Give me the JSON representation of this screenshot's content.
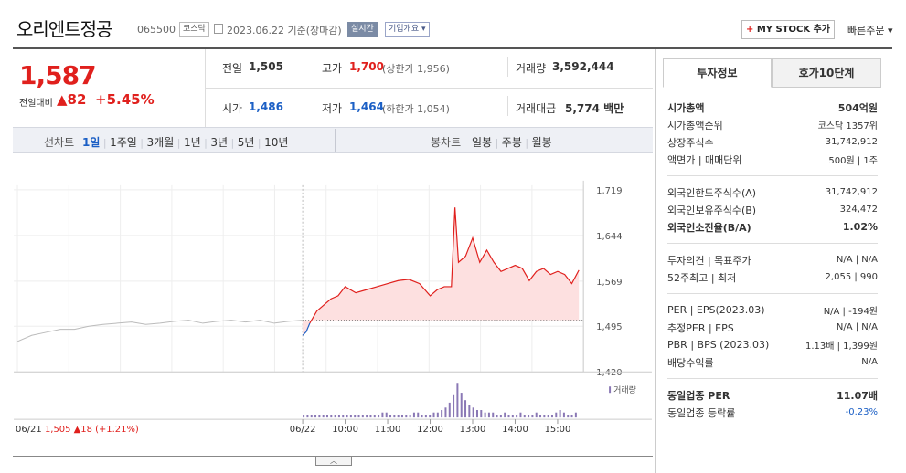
{
  "header": {
    "name": "오리엔트정공",
    "code": "065500",
    "market": "코스닥",
    "date": "2023.06.22 기준(장마감)",
    "realtime": "실시간",
    "corp_info": "기업개요",
    "mystock": "MY STOCK 추가",
    "mystock_plus": "+",
    "quick_order": "빠른주문"
  },
  "quote": {
    "price": "1,587",
    "change_label": "전일대비",
    "change": "82",
    "change_pct": "+5.45%",
    "prev_label": "전일",
    "prev": "1,505",
    "high_label": "고가",
    "high": "1,700",
    "upper_limit": "(상한가 1,956)",
    "volume_label": "거래량",
    "volume": "3,592,444",
    "open_label": "시가",
    "open": "1,486",
    "low_label": "저가",
    "low": "1,464",
    "lower_limit": "(하한가 1,054)",
    "amount_label": "거래대금",
    "amount": "5,774",
    "amount_unit": "백만"
  },
  "toolbar": {
    "line_label": "선차트",
    "ranges": [
      "1일",
      "1주일",
      "3개월",
      "1년",
      "3년",
      "5년",
      "10년"
    ],
    "candle_label": "봉차트",
    "candles": [
      "일봉",
      "주봉",
      "월봉"
    ]
  },
  "chart_data": {
    "type": "line",
    "y_ticks": [
      "1,719",
      "1,644",
      "1,569",
      "1,495",
      "1,420"
    ],
    "ylim": [
      1420,
      1719
    ],
    "x_ticks": [
      "06/22",
      "10:00",
      "11:00",
      "12:00",
      "13:00",
      "14:00",
      "15:00"
    ],
    "prev_close": 1505,
    "prev_day": {
      "x": [
        0,
        0.05,
        0.1,
        0.15,
        0.2,
        0.25,
        0.3,
        0.35,
        0.4,
        0.45,
        0.5,
        0.55,
        0.6,
        0.65,
        0.7,
        0.75,
        0.8,
        0.85,
        0.9,
        0.95,
        1
      ],
      "y": [
        1470,
        1480,
        1485,
        1490,
        1490,
        1495,
        1498,
        1500,
        1502,
        1498,
        1500,
        1503,
        1505,
        1500,
        1503,
        1505,
        1502,
        1505,
        1500,
        1503,
        1505
      ]
    },
    "today": {
      "time": [
        "09:00",
        "09:05",
        "09:10",
        "09:20",
        "09:30",
        "09:40",
        "09:50",
        "10:00",
        "10:15",
        "10:30",
        "10:45",
        "11:00",
        "11:15",
        "11:30",
        "11:45",
        "12:00",
        "12:10",
        "12:20",
        "12:30",
        "12:35",
        "12:40",
        "12:50",
        "13:00",
        "13:10",
        "13:20",
        "13:30",
        "13:40",
        "13:50",
        "14:00",
        "14:10",
        "14:20",
        "14:30",
        "14:40",
        "14:50",
        "15:00",
        "15:10",
        "15:20",
        "15:30"
      ],
      "y": [
        1480,
        1486,
        1500,
        1520,
        1530,
        1540,
        1545,
        1560,
        1550,
        1555,
        1560,
        1565,
        1570,
        1572,
        1565,
        1545,
        1555,
        1560,
        1560,
        1690,
        1600,
        1610,
        1640,
        1600,
        1620,
        1600,
        1585,
        1590,
        1595,
        1590,
        1570,
        1585,
        1590,
        1580,
        1585,
        1580,
        1565,
        1587
      ]
    },
    "volume_label": "거래량",
    "volume_profile": [
      1,
      1,
      1,
      1,
      1,
      1,
      1,
      1,
      1,
      1,
      1,
      1,
      1,
      1,
      1,
      1,
      1,
      1,
      1,
      1,
      2,
      2,
      1,
      1,
      1,
      1,
      1,
      1,
      2,
      2,
      1,
      1,
      1,
      2,
      2,
      3,
      4,
      6,
      9,
      14,
      10,
      7,
      5,
      4,
      3,
      3,
      2,
      2,
      2,
      1,
      1,
      2,
      1,
      1,
      1,
      2,
      1,
      1,
      1,
      2,
      1,
      1,
      1,
      1,
      2,
      3,
      2,
      1,
      1,
      2
    ]
  },
  "bottom": {
    "prev_date": "06/21",
    "prev_close": "1,505",
    "prev_change": "18",
    "prev_change_pct": "(+1.21%)",
    "up_arrow": "▲",
    "handle": "︿"
  },
  "panel": {
    "tabs": [
      "투자정보",
      "호가10단계"
    ],
    "rows1": [
      {
        "k": "시가총액",
        "v": "504억원"
      },
      {
        "k": "시가총액순위",
        "v": "코스닥 1357위"
      },
      {
        "k": "상장주식수",
        "v": "31,742,912"
      },
      {
        "k": "액면가 | 매매단위",
        "v": "500원 | 1주"
      }
    ],
    "rows2": [
      {
        "k": "외국인한도주식수(A)",
        "v": "31,742,912"
      },
      {
        "k": "외국인보유주식수(B)",
        "v": "324,472"
      },
      {
        "k": "외국인소진율(B/A)",
        "v": "1.02%"
      }
    ],
    "rows3": [
      {
        "k": "투자의견 | 목표주가",
        "v": "N/A | N/A"
      },
      {
        "k": "52주최고 | 최저",
        "v": "2,055 | 990"
      }
    ],
    "rows4": [
      {
        "k": "PER | EPS(2023.03)",
        "v": "N/A | -194원"
      },
      {
        "k": "추정PER | EPS",
        "v": "N/A | N/A"
      },
      {
        "k": "PBR | BPS (2023.03)",
        "v": "1.13배 | 1,399원"
      },
      {
        "k": "배당수익률",
        "v": "N/A"
      }
    ],
    "rows5": [
      {
        "k": "동일업종 PER",
        "v": "11.07배"
      },
      {
        "k": "동일업종 등락률",
        "v": "-0.23%"
      }
    ],
    "colors": {
      "up": "#e0201d",
      "down": "#1b5fc5"
    }
  }
}
